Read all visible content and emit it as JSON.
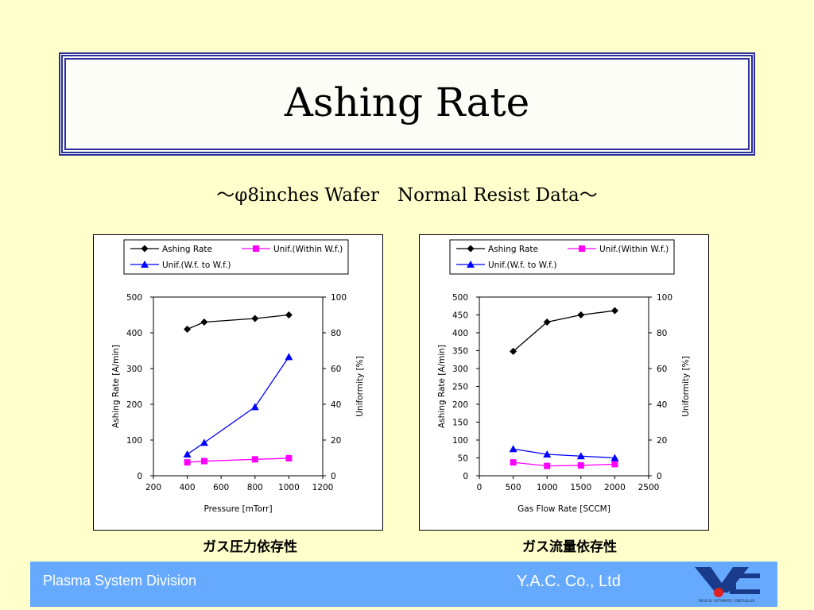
{
  "slide": {
    "title": "Ashing Rate",
    "subtitle": "～φ8inches Wafer　Normal Resist Data～",
    "captions": [
      "ガス圧力依存性",
      "ガス流量依存性"
    ],
    "footer_left": "Plasma System Division",
    "footer_right": "Y.A.C. Co., Ltd",
    "logo_text": "YIELD OF AUTOMATIC CONTROLLER",
    "colors": {
      "background": "#ffffcc",
      "title_border": "#2b2f9e",
      "footer": "#66aaff",
      "logo_red": "#e02020",
      "logo_blue": "#1a3a8a"
    }
  },
  "chart_data": [
    {
      "type": "line",
      "xlabel": "Pressure [mTorr]",
      "ylabel": "Ashing Rate [A/min]",
      "y2label": "Uniformity [%]",
      "xlim": [
        200,
        1200
      ],
      "ylim": [
        0,
        500
      ],
      "y2lim": [
        0,
        100
      ],
      "xticks": [
        "200",
        "400",
        "600",
        "800",
        "1000",
        "1200"
      ],
      "yticks": [
        "0",
        "100",
        "200",
        "300",
        "400",
        "500"
      ],
      "y2ticks": [
        "0",
        "20",
        "40",
        "60",
        "80",
        "100"
      ],
      "legend": "top",
      "series": [
        {
          "name": "Ashing Rate",
          "axis": "left",
          "marker": "diamond",
          "color": "#000000",
          "x": [
            400,
            500,
            800,
            1000
          ],
          "values": [
            410,
            430,
            440,
            450
          ]
        },
        {
          "name": "Unif.(Within W.f.)",
          "axis": "right",
          "marker": "square",
          "color": "#ff00ff",
          "x": [
            400,
            500,
            800,
            1000
          ],
          "values": [
            7.5,
            8.2,
            9.2,
            9.8
          ]
        },
        {
          "name": "Unif.(W.f. to W.f.)",
          "axis": "right",
          "marker": "triangle",
          "color": "#0000ff",
          "x": [
            400,
            500,
            800,
            1000
          ],
          "values": [
            12,
            18.5,
            38.5,
            66.5
          ]
        }
      ]
    },
    {
      "type": "line",
      "xlabel": "Gas Flow Rate [SCCM]",
      "ylabel": "Ashing Rate [A/min]",
      "y2label": "Uniformity [%]",
      "xlim": [
        0,
        2500
      ],
      "ylim": [
        0,
        500
      ],
      "y2lim": [
        0,
        100
      ],
      "xticks": [
        "0",
        "500",
        "1000",
        "1500",
        "2000",
        "2500"
      ],
      "yticks": [
        "0",
        "50",
        "100",
        "150",
        "200",
        "250",
        "300",
        "350",
        "400",
        "450",
        "500"
      ],
      "y2ticks": [
        "0",
        "20",
        "40",
        "60",
        "80",
        "100"
      ],
      "legend": "top",
      "series": [
        {
          "name": "Ashing Rate",
          "axis": "left",
          "marker": "diamond",
          "color": "#000000",
          "x": [
            500,
            1000,
            1500,
            2000
          ],
          "values": [
            348,
            430,
            450,
            462
          ]
        },
        {
          "name": "Unif.(Within W.f.)",
          "axis": "right",
          "marker": "square",
          "color": "#ff00ff",
          "x": [
            500,
            1000,
            1500,
            2000
          ],
          "values": [
            7.5,
            5.5,
            5.8,
            6.5
          ]
        },
        {
          "name": "Unif.(W.f. to W.f.)",
          "axis": "right",
          "marker": "triangle",
          "color": "#0000ff",
          "x": [
            500,
            1000,
            1500,
            2000
          ],
          "values": [
            15,
            12,
            11,
            10
          ]
        }
      ]
    }
  ]
}
